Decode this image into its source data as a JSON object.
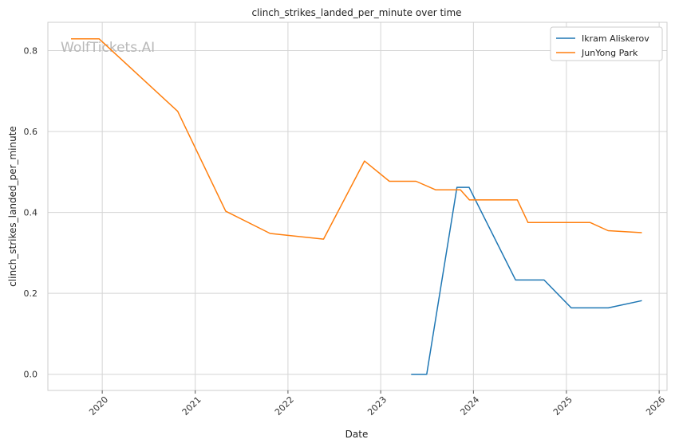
{
  "chart_data": {
    "type": "line",
    "title": "clinch_strikes_landed_per_minute over time",
    "xlabel": "Date",
    "ylabel": "clinch_strikes_landed_per_minute",
    "watermark": "WolfTickets.AI",
    "xlim": [
      "2019-06-01",
      "2026-02-01"
    ],
    "ylim": [
      -0.04,
      0.87
    ],
    "x_ticks": [
      "2020-01-01",
      "2021-01-01",
      "2022-01-01",
      "2023-01-01",
      "2024-01-01",
      "2025-01-01",
      "2026-01-01"
    ],
    "x_tick_labels": [
      "2020",
      "2021",
      "2022",
      "2023",
      "2024",
      "2025",
      "2026"
    ],
    "y_ticks": [
      0.0,
      0.2,
      0.4,
      0.6,
      0.8
    ],
    "y_tick_labels": [
      "0.0",
      "0.2",
      "0.4",
      "0.6",
      "0.8"
    ],
    "grid": true,
    "legend_position": "top-right",
    "series": [
      {
        "name": "Ikram Aliskerov",
        "color": "#1f77b4",
        "points": [
          {
            "x": "2023-05-01",
            "y": 0.0
          },
          {
            "x": "2023-07-01",
            "y": 0.0
          },
          {
            "x": "2023-10-28",
            "y": 0.462
          },
          {
            "x": "2023-12-15",
            "y": 0.462
          },
          {
            "x": "2024-06-15",
            "y": 0.233
          },
          {
            "x": "2024-10-05",
            "y": 0.233
          },
          {
            "x": "2025-01-20",
            "y": 0.164
          },
          {
            "x": "2025-06-15",
            "y": 0.164
          },
          {
            "x": "2025-10-25",
            "y": 0.182
          }
        ]
      },
      {
        "name": "JunYong Park",
        "color": "#ff7f0e",
        "points": [
          {
            "x": "2019-08-31",
            "y": 0.829
          },
          {
            "x": "2019-12-20",
            "y": 0.829
          },
          {
            "x": "2020-10-24",
            "y": 0.65
          },
          {
            "x": "2021-05-01",
            "y": 0.403
          },
          {
            "x": "2021-10-23",
            "y": 0.348
          },
          {
            "x": "2022-05-21",
            "y": 0.334
          },
          {
            "x": "2022-10-29",
            "y": 0.527
          },
          {
            "x": "2023-02-04",
            "y": 0.477
          },
          {
            "x": "2023-05-20",
            "y": 0.477
          },
          {
            "x": "2023-08-05",
            "y": 0.456
          },
          {
            "x": "2023-11-11",
            "y": 0.456
          },
          {
            "x": "2023-12-16",
            "y": 0.431
          },
          {
            "x": "2024-06-22",
            "y": 0.431
          },
          {
            "x": "2024-08-03",
            "y": 0.375
          },
          {
            "x": "2025-04-05",
            "y": 0.375
          },
          {
            "x": "2025-06-14",
            "y": 0.355
          },
          {
            "x": "2025-10-25",
            "y": 0.35
          }
        ]
      }
    ]
  }
}
